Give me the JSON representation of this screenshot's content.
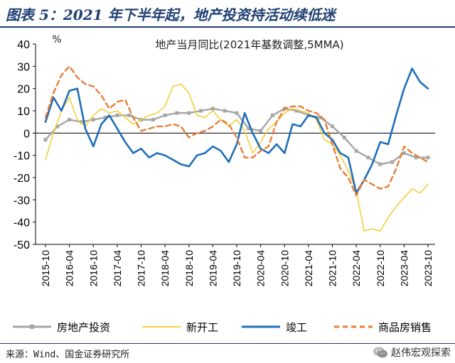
{
  "header": {
    "title": "图表 5：2021 年下半年起，地产投资持活动续低迷"
  },
  "footer": {
    "source": "来源：Wind、国金证券研究所",
    "watermark": "赵伟宏观探索"
  },
  "colors": {
    "investment": "#a6a6a6",
    "new_starts": "#f2cf3d",
    "completions": "#1f6fb8",
    "sales": "#e87d33",
    "title_blue": "#1f3f73"
  },
  "chart_data": {
    "type": "line",
    "title": "地产当月同比(2021年基数调整,5MMA)",
    "ylabel": "%",
    "ylim": [
      -50,
      40
    ],
    "yticks": [
      40,
      30,
      20,
      10,
      0,
      -10,
      -20,
      -30,
      -40,
      -50
    ],
    "x_start": "2015-10",
    "x_end": "2023-10",
    "xticks": [
      "2015-10",
      "2016-04",
      "2016-10",
      "2017-04",
      "2017-10",
      "2018-04",
      "2018-10",
      "2019-04",
      "2019-10",
      "2020-04",
      "2020-10",
      "2021-04",
      "2021-10",
      "2022-04",
      "2022-10",
      "2023-04",
      "2023-10"
    ],
    "legend_position": "bottom",
    "series": [
      {
        "name": "房地产投资",
        "key": "investment",
        "marker": "square",
        "points": [
          [
            "2015-10",
            -3
          ],
          [
            "2016-01",
            3
          ],
          [
            "2016-04",
            6
          ],
          [
            "2016-07",
            5
          ],
          [
            "2016-10",
            6
          ],
          [
            "2017-01",
            7
          ],
          [
            "2017-04",
            8
          ],
          [
            "2017-07",
            8
          ],
          [
            "2017-10",
            6
          ],
          [
            "2018-01",
            6
          ],
          [
            "2018-04",
            8
          ],
          [
            "2018-07",
            9
          ],
          [
            "2018-10",
            9
          ],
          [
            "2019-01",
            10
          ],
          [
            "2019-04",
            11
          ],
          [
            "2019-07",
            10
          ],
          [
            "2019-10",
            9
          ],
          [
            "2020-01",
            2
          ],
          [
            "2020-04",
            1
          ],
          [
            "2020-07",
            8
          ],
          [
            "2020-10",
            11
          ],
          [
            "2021-01",
            10
          ],
          [
            "2021-04",
            8
          ],
          [
            "2021-07",
            7
          ],
          [
            "2021-10",
            3
          ],
          [
            "2022-01",
            -2
          ],
          [
            "2022-04",
            -8
          ],
          [
            "2022-07",
            -11
          ],
          [
            "2022-10",
            -14
          ],
          [
            "2023-01",
            -13
          ],
          [
            "2023-04",
            -9
          ],
          [
            "2023-07",
            -11
          ],
          [
            "2023-10",
            -11
          ]
        ]
      },
      {
        "name": "新开工",
        "key": "new_starts",
        "marker": "none",
        "points": [
          [
            "2015-10",
            -12
          ],
          [
            "2015-12",
            0
          ],
          [
            "2016-02",
            10
          ],
          [
            "2016-04",
            16
          ],
          [
            "2016-06",
            6
          ],
          [
            "2016-08",
            3
          ],
          [
            "2016-10",
            8
          ],
          [
            "2016-12",
            11
          ],
          [
            "2017-02",
            9
          ],
          [
            "2017-04",
            10
          ],
          [
            "2017-06",
            7
          ],
          [
            "2017-08",
            4
          ],
          [
            "2017-10",
            6
          ],
          [
            "2017-12",
            8
          ],
          [
            "2018-02",
            9
          ],
          [
            "2018-04",
            12
          ],
          [
            "2018-06",
            21
          ],
          [
            "2018-08",
            22
          ],
          [
            "2018-10",
            18
          ],
          [
            "2018-12",
            8
          ],
          [
            "2019-02",
            7
          ],
          [
            "2019-04",
            10
          ],
          [
            "2019-06",
            6
          ],
          [
            "2019-08",
            3
          ],
          [
            "2019-10",
            6
          ],
          [
            "2019-12",
            1
          ],
          [
            "2020-02",
            -9
          ],
          [
            "2020-04",
            -4
          ],
          [
            "2020-06",
            2
          ],
          [
            "2020-08",
            5
          ],
          [
            "2020-10",
            9
          ],
          [
            "2020-12",
            11
          ],
          [
            "2021-02",
            10
          ],
          [
            "2021-04",
            9
          ],
          [
            "2021-06",
            6
          ],
          [
            "2021-08",
            -3
          ],
          [
            "2021-10",
            -5
          ],
          [
            "2021-12",
            -10
          ],
          [
            "2022-02",
            -17
          ],
          [
            "2022-04",
            -26
          ],
          [
            "2022-06",
            -44
          ],
          [
            "2022-08",
            -43
          ],
          [
            "2022-10",
            -44
          ],
          [
            "2022-12",
            -38
          ],
          [
            "2023-02",
            -33
          ],
          [
            "2023-04",
            -29
          ],
          [
            "2023-06",
            -25
          ],
          [
            "2023-08",
            -27
          ],
          [
            "2023-10",
            -23
          ]
        ]
      },
      {
        "name": "竣工",
        "key": "completions",
        "marker": "none",
        "points": [
          [
            "2015-10",
            5
          ],
          [
            "2015-12",
            16
          ],
          [
            "2016-02",
            10
          ],
          [
            "2016-04",
            19
          ],
          [
            "2016-06",
            20
          ],
          [
            "2016-08",
            2
          ],
          [
            "2016-10",
            -6
          ],
          [
            "2016-12",
            4
          ],
          [
            "2017-02",
            8
          ],
          [
            "2017-04",
            2
          ],
          [
            "2017-06",
            -4
          ],
          [
            "2017-08",
            -9
          ],
          [
            "2017-10",
            -7
          ],
          [
            "2017-12",
            -11
          ],
          [
            "2018-02",
            -9
          ],
          [
            "2018-04",
            -10
          ],
          [
            "2018-06",
            -12
          ],
          [
            "2018-08",
            -14
          ],
          [
            "2018-10",
            -15
          ],
          [
            "2018-12",
            -10
          ],
          [
            "2019-02",
            -9
          ],
          [
            "2019-04",
            -6
          ],
          [
            "2019-06",
            -8
          ],
          [
            "2019-08",
            -13
          ],
          [
            "2019-10",
            -5
          ],
          [
            "2019-12",
            9
          ],
          [
            "2020-02",
            0
          ],
          [
            "2020-04",
            -7
          ],
          [
            "2020-06",
            -9
          ],
          [
            "2020-08",
            -5
          ],
          [
            "2020-10",
            -9
          ],
          [
            "2020-12",
            4
          ],
          [
            "2021-02",
            3
          ],
          [
            "2021-04",
            8
          ],
          [
            "2021-06",
            7
          ],
          [
            "2021-08",
            0
          ],
          [
            "2021-10",
            -3
          ],
          [
            "2021-12",
            -9
          ],
          [
            "2022-02",
            -11
          ],
          [
            "2022-04",
            -27
          ],
          [
            "2022-06",
            -21
          ],
          [
            "2022-08",
            -14
          ],
          [
            "2022-10",
            -4
          ],
          [
            "2022-12",
            -5
          ],
          [
            "2023-02",
            8
          ],
          [
            "2023-04",
            20
          ],
          [
            "2023-06",
            29
          ],
          [
            "2023-08",
            23
          ],
          [
            "2023-10",
            20
          ]
        ]
      },
      {
        "name": "商品房销售",
        "key": "sales",
        "marker": "none",
        "dash": true,
        "points": [
          [
            "2015-10",
            7
          ],
          [
            "2015-12",
            18
          ],
          [
            "2016-02",
            26
          ],
          [
            "2016-04",
            30
          ],
          [
            "2016-06",
            25
          ],
          [
            "2016-08",
            22
          ],
          [
            "2016-10",
            21
          ],
          [
            "2016-12",
            17
          ],
          [
            "2017-02",
            11
          ],
          [
            "2017-04",
            14
          ],
          [
            "2017-06",
            15
          ],
          [
            "2017-08",
            7
          ],
          [
            "2017-10",
            1
          ],
          [
            "2017-12",
            2
          ],
          [
            "2018-02",
            3
          ],
          [
            "2018-04",
            3
          ],
          [
            "2018-06",
            4
          ],
          [
            "2018-08",
            3
          ],
          [
            "2018-10",
            -2
          ],
          [
            "2018-12",
            0
          ],
          [
            "2019-02",
            1
          ],
          [
            "2019-04",
            3
          ],
          [
            "2019-06",
            6
          ],
          [
            "2019-08",
            4
          ],
          [
            "2019-10",
            -2
          ],
          [
            "2019-12",
            -11
          ],
          [
            "2020-02",
            -11
          ],
          [
            "2020-04",
            -8
          ],
          [
            "2020-06",
            -6
          ],
          [
            "2020-08",
            5
          ],
          [
            "2020-10",
            11
          ],
          [
            "2020-12",
            12
          ],
          [
            "2021-02",
            12
          ],
          [
            "2021-04",
            10
          ],
          [
            "2021-06",
            9
          ],
          [
            "2021-08",
            6
          ],
          [
            "2021-10",
            -5
          ],
          [
            "2021-12",
            -16
          ],
          [
            "2022-02",
            -20
          ],
          [
            "2022-04",
            -28
          ],
          [
            "2022-06",
            -21
          ],
          [
            "2022-08",
            -23
          ],
          [
            "2022-10",
            -25
          ],
          [
            "2022-12",
            -24
          ],
          [
            "2023-02",
            -16
          ],
          [
            "2023-04",
            -6
          ],
          [
            "2023-06",
            -9
          ],
          [
            "2023-08",
            -11
          ],
          [
            "2023-10",
            -13
          ]
        ]
      }
    ]
  }
}
